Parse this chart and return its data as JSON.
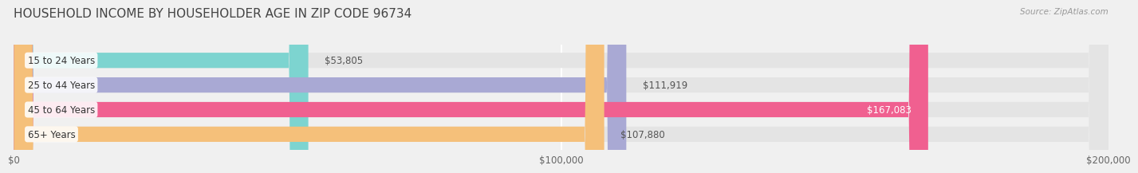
{
  "title": "HOUSEHOLD INCOME BY HOUSEHOLDER AGE IN ZIP CODE 96734",
  "source": "Source: ZipAtlas.com",
  "categories": [
    "15 to 24 Years",
    "25 to 44 Years",
    "45 to 64 Years",
    "65+ Years"
  ],
  "values": [
    53805,
    111919,
    167083,
    107880
  ],
  "bar_colors": [
    "#7dd4d0",
    "#a9a9d4",
    "#f06090",
    "#f5c07a"
  ],
  "background_color": "#f0f0f0",
  "bar_background_color": "#e4e4e4",
  "xlim": [
    0,
    200000
  ],
  "xticks": [
    0,
    100000,
    200000
  ],
  "xtick_labels": [
    "$0",
    "$100,000",
    "$200,000"
  ],
  "value_labels": [
    "$53,805",
    "$111,919",
    "$167,083",
    "$107,880"
  ],
  "title_fontsize": 11,
  "label_fontsize": 8.5,
  "bar_height": 0.62
}
